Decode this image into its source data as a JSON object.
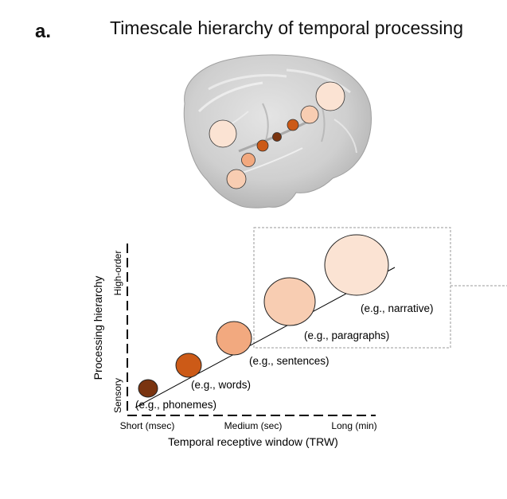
{
  "panel_label": "a.",
  "title": "Timescale hierarchy of temporal processing",
  "colors": {
    "level1": "#7a3410",
    "level2": "#cc5a17",
    "level3": "#f2a97f",
    "level4": "#f8cdb2",
    "level5": "#fbe3d3",
    "brain": "#c9c9c9",
    "dashed_box": "#9a9a9a"
  },
  "axes": {
    "y_label": "Processing hierarchy",
    "y_low": "Sensory",
    "y_high": "High-order",
    "x_label": "Temporal receptive window (TRW)",
    "x_ticks": [
      "Short (msec)",
      "Medium (sec)",
      "Long (min)"
    ]
  },
  "levels": [
    {
      "label": "(e.g., phonemes)",
      "color": "#7a3410"
    },
    {
      "label": "(e.g., words)",
      "color": "#cc5a17"
    },
    {
      "label": "(e.g., sentences)",
      "color": "#f2a97f"
    },
    {
      "label": "(e.g., paragraphs)",
      "color": "#f8cdb2"
    },
    {
      "label": "(e.g., narrative)",
      "color": "#fbe3d3"
    }
  ]
}
